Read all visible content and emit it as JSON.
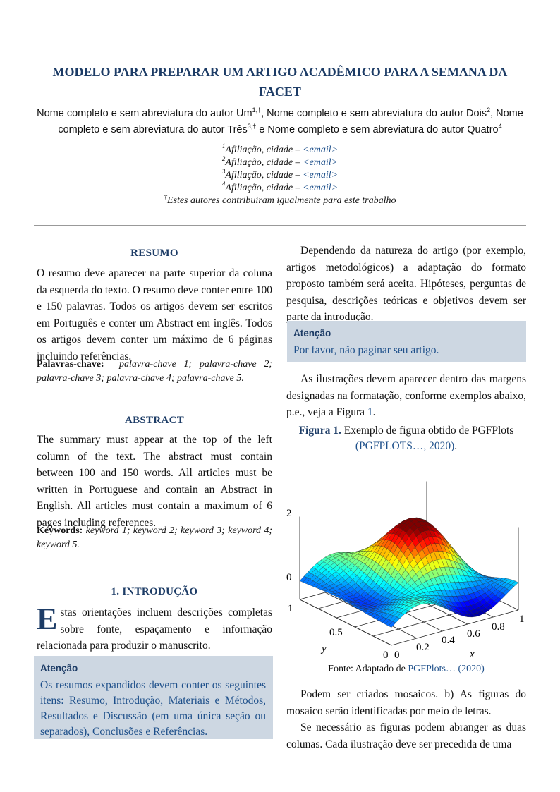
{
  "header": {
    "title": "MODELO PARA PREPARAR UM ARTIGO ACADÊMICO PARA A SEMANA DA FACET",
    "authors": [
      {
        "text": "Nome completo e sem abreviatura do autor Um",
        "sup": "1,†"
      },
      {
        "text": ", Nome completo e sem abreviatura do autor Dois",
        "sup": "2"
      },
      {
        "text": ", Nome completo e sem abreviatura do autor Três",
        "sup": "3,†"
      },
      {
        "text": " e Nome completo e sem abreviatura do autor Quatro",
        "sup": "4"
      }
    ],
    "affiliations": [
      {
        "sup": "1",
        "text": "Afiliação, cidade – ",
        "email": "<email>"
      },
      {
        "sup": "2",
        "text": "Afiliação, cidade – ",
        "email": "<email>"
      },
      {
        "sup": "3",
        "text": "Afiliação, cidade – ",
        "email": "<email>"
      },
      {
        "sup": "4",
        "text": "Afiliação, cidade – ",
        "email": "<email>"
      }
    ],
    "note": {
      "sup": "†",
      "text": "Estes autores contribuiram igualmente para este trabalho"
    }
  },
  "resumo": {
    "heading": "RESUMO",
    "text": "O resumo deve aparecer na parte superior da coluna da esquerda do texto. O resumo deve conter entre 100 e 150 palavras. Todos os artigos devem ser escritos em Português e conter um Abstract em inglês. Todos os artigos devem conter um máximo de 6 páginas incluindo referências.",
    "keywords_label": "Palavras-chave:",
    "keywords": "palavra-chave 1; palavra-chave 2; palavra-chave 3; palavra-chave 4; palavra-chave 5."
  },
  "abstract": {
    "heading": "ABSTRACT",
    "text": "The summary must appear at the top of the left column of the text. The abstract must contain between 100 and 150 words. All articles must be written in Portuguese and contain an Abstract in English. All articles must contain a maximum of 6 pages including references.",
    "keywords_label": "Keywords:",
    "keywords": "keyword 1; keyword 2; keyword 3; keyword 4; keyword 5."
  },
  "intro": {
    "heading": "1. INTRODUÇÃO",
    "dropcap": "E",
    "text": "stas orientações incluem descrições completas sobre fonte, espaçamento e informação relacionada para produzir o manuscrito.",
    "box": {
      "title": "Atenção",
      "text": "Os resumos expandidos devem conter os seguintes itens: Resumo, Introdução, Materiais e Métodos, Resultados e Discussão (em uma única seção ou separados), Conclusões e Referências."
    }
  },
  "right": {
    "paragraph1": "Dependendo da natureza do artigo (por exemplo, artigos metodológicos) a adaptação do formato proposto também será aceita. Hipóteses, perguntas de pesquisa, descrições teóricas e objetivos devem ser parte da introdução.",
    "box": {
      "title": "Atenção",
      "text": "Por favor, não paginar seu artigo."
    },
    "paragraph2": {
      "text": "As ilustrações devem aparecer dentro das margens designadas na formatação, conforme exemplos abaixo, p.e., veja a Figura ",
      "link": "1",
      "end": "."
    },
    "figure": {
      "label": "Figura 1.",
      "caption": "Exemplo de figura obtido de PGFPlots",
      "cite": "(PGFPLOTS…, 2020)",
      "end": ".",
      "zticks": [
        0,
        2
      ],
      "yticks": [
        1,
        0.5,
        0
      ],
      "xticks": [
        0,
        0.2,
        0.4,
        0.6,
        0.8,
        1
      ],
      "xlabel": "x",
      "ylabel": "y",
      "source": "Fonte: Adaptado de ",
      "source_cite": "PGFPlots… (2020)"
    },
    "paragraph3": "Podem ser criados mosaicos. b) As figuras do mosaico serão identificadas por meio de letras.",
    "paragraph4": "Se necessário as figuras podem abranger as duas colunas. Cada ilustração deve ser precedida de uma"
  }
}
